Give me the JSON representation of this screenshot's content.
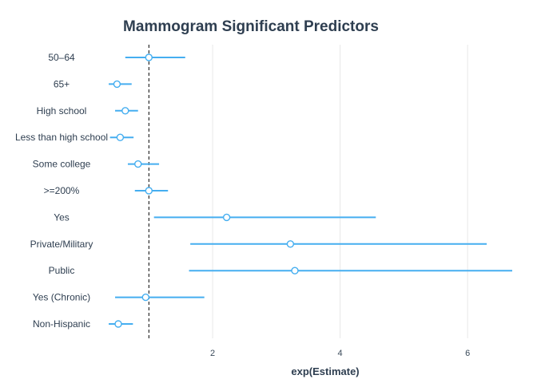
{
  "chart_data": {
    "type": "scatter",
    "title": "Mammogram Significant Predictors",
    "xlabel": "exp(Estimate)",
    "ylabel": "",
    "xlim": [
      0.57,
      6.7
    ],
    "xticks": [
      2,
      4,
      6
    ],
    "reference_line": 1,
    "grid": "vertical major",
    "colors": {
      "point_fill": "#ffffff",
      "point_stroke": "#45aef0",
      "interval": "#45aef0",
      "grid": "#e8e8e8",
      "reference": "#000000"
    },
    "categories": [
      "50–64",
      "65+",
      "High school",
      "Less than high school",
      "Some college",
      ">=200%",
      "Yes",
      "Private/Military",
      "Public",
      "Yes (Chronic)",
      "Non-Hispanic"
    ],
    "estimates": [
      1.0,
      0.5,
      0.63,
      0.55,
      0.83,
      1.0,
      2.22,
      3.22,
      3.29,
      0.95,
      0.52
    ],
    "lower": [
      0.63,
      0.37,
      0.47,
      0.39,
      0.67,
      0.78,
      1.08,
      1.65,
      1.63,
      0.47,
      0.37
    ],
    "upper": [
      1.57,
      0.73,
      0.83,
      0.76,
      1.16,
      1.3,
      4.56,
      6.3,
      6.7,
      1.87,
      0.75
    ]
  }
}
